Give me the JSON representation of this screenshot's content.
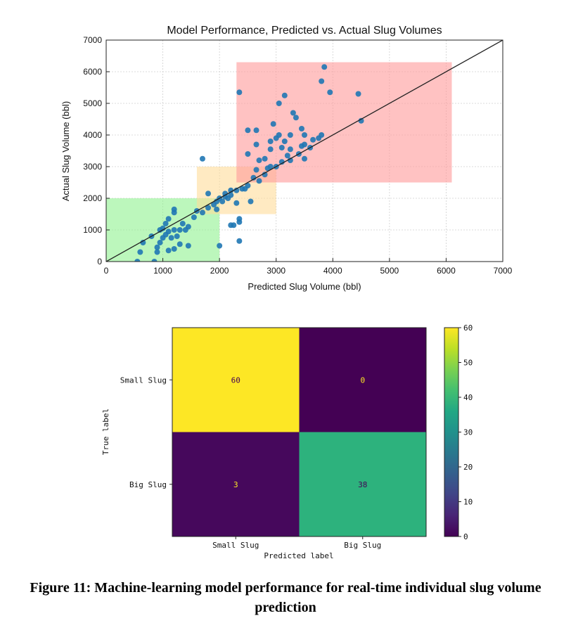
{
  "chart_data": [
    {
      "type": "scatter",
      "title": "Model Performance, Predicted vs. Actual Slug Volumes",
      "xlabel": "Predicted Slug Volume (bbl)",
      "ylabel": "Actual Slug Volume (bbl)",
      "xlim": [
        0,
        7000
      ],
      "ylim": [
        0,
        7000
      ],
      "xticks": [
        "0",
        "1000",
        "2000",
        "3000",
        "4000",
        "5000",
        "6000",
        "7000"
      ],
      "yticks": [
        "0",
        "1000",
        "2000",
        "3000",
        "4000",
        "5000",
        "6000",
        "7000"
      ],
      "grid": true,
      "reference_line": {
        "from": [
          0,
          0
        ],
        "to": [
          7000,
          7000
        ],
        "color": "#222222"
      },
      "regions": [
        {
          "x": [
            0,
            2000
          ],
          "y": [
            0,
            2000
          ],
          "color": "#8ff28f"
        },
        {
          "x": [
            1600,
            3000
          ],
          "y": [
            1500,
            3000
          ],
          "color": "#ffdc99"
        },
        {
          "x": [
            2300,
            6100
          ],
          "y": [
            2500,
            6300
          ],
          "color": "#ff9a9a"
        }
      ],
      "point_color": "#1f77b4",
      "points": [
        [
          550,
          0
        ],
        [
          600,
          300
        ],
        [
          650,
          600
        ],
        [
          800,
          800
        ],
        [
          850,
          0
        ],
        [
          900,
          300
        ],
        [
          900,
          450
        ],
        [
          950,
          600
        ],
        [
          950,
          1000
        ],
        [
          1000,
          750
        ],
        [
          1000,
          1050
        ],
        [
          1050,
          850
        ],
        [
          1050,
          1200
        ],
        [
          1100,
          350
        ],
        [
          1100,
          950
        ],
        [
          1100,
          1350
        ],
        [
          1150,
          750
        ],
        [
          1200,
          400
        ],
        [
          1200,
          1000
        ],
        [
          1200,
          1550
        ],
        [
          1200,
          1650
        ],
        [
          1250,
          800
        ],
        [
          1300,
          550
        ],
        [
          1300,
          1000
        ],
        [
          1350,
          1200
        ],
        [
          1400,
          1000
        ],
        [
          1450,
          1100
        ],
        [
          1450,
          500
        ],
        [
          1550,
          1400
        ],
        [
          1600,
          1600
        ],
        [
          1700,
          1550
        ],
        [
          1700,
          3250
        ],
        [
          1800,
          1700
        ],
        [
          1800,
          2150
        ],
        [
          1900,
          1800
        ],
        [
          1950,
          1650
        ],
        [
          1950,
          1900
        ],
        [
          2000,
          500
        ],
        [
          2000,
          2000
        ],
        [
          2050,
          1900
        ],
        [
          2100,
          2050
        ],
        [
          2100,
          2150
        ],
        [
          2150,
          2000
        ],
        [
          2200,
          2100
        ],
        [
          2200,
          2250
        ],
        [
          2200,
          1150
        ],
        [
          2250,
          1150
        ],
        [
          2300,
          2250
        ],
        [
          2300,
          1850
        ],
        [
          2350,
          650
        ],
        [
          2350,
          1250
        ],
        [
          2350,
          1350
        ],
        [
          2350,
          5350
        ],
        [
          2400,
          2300
        ],
        [
          2450,
          2300
        ],
        [
          2500,
          2400
        ],
        [
          2500,
          3400
        ],
        [
          2500,
          4150
        ],
        [
          2550,
          1900
        ],
        [
          2600,
          2650
        ],
        [
          2650,
          2900
        ],
        [
          2650,
          3700
        ],
        [
          2650,
          4150
        ],
        [
          2700,
          2550
        ],
        [
          2700,
          3200
        ],
        [
          2800,
          2750
        ],
        [
          2800,
          3250
        ],
        [
          2850,
          2950
        ],
        [
          2900,
          3000
        ],
        [
          2900,
          3550
        ],
        [
          2900,
          3800
        ],
        [
          2950,
          4350
        ],
        [
          3000,
          3000
        ],
        [
          3000,
          3900
        ],
        [
          3050,
          4000
        ],
        [
          3050,
          5000
        ],
        [
          3100,
          3150
        ],
        [
          3100,
          3600
        ],
        [
          3150,
          3800
        ],
        [
          3150,
          5250
        ],
        [
          3200,
          3350
        ],
        [
          3250,
          3200
        ],
        [
          3250,
          3550
        ],
        [
          3250,
          4000
        ],
        [
          3300,
          4700
        ],
        [
          3350,
          4550
        ],
        [
          3400,
          3400
        ],
        [
          3450,
          3650
        ],
        [
          3450,
          4200
        ],
        [
          3500,
          3250
        ],
        [
          3500,
          3700
        ],
        [
          3500,
          4000
        ],
        [
          3600,
          3600
        ],
        [
          3650,
          3850
        ],
        [
          3750,
          3900
        ],
        [
          3800,
          4000
        ],
        [
          3800,
          5700
        ],
        [
          3850,
          6150
        ],
        [
          3950,
          5350
        ],
        [
          4450,
          5300
        ],
        [
          4500,
          4450
        ]
      ]
    },
    {
      "type": "heatmap",
      "xlabel": "Predicted label",
      "ylabel": "True label",
      "x_categories": [
        "Small Slug",
        "Big Slug"
      ],
      "y_categories": [
        "Small Slug",
        "Big Slug"
      ],
      "values": [
        [
          60,
          0
        ],
        [
          3,
          38
        ]
      ],
      "vmin": 0,
      "vmax": 60,
      "colormap": "viridis",
      "colorbar_ticks": [
        "0",
        "10",
        "20",
        "30",
        "40",
        "50",
        "60"
      ],
      "cell_colors": [
        [
          "#fde725",
          "#440154"
        ],
        [
          "#46085c",
          "#2db27d"
        ]
      ],
      "annotation_colors": [
        [
          "#440154",
          "#fde725"
        ],
        [
          "#fde725",
          "#440154"
        ]
      ]
    }
  ],
  "caption": "Figure 11: Machine-learning model performance for real-time individual slug volume prediction"
}
